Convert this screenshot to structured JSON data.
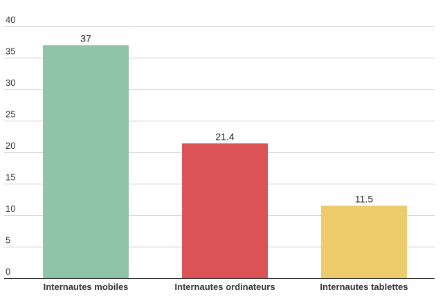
{
  "chart_data": {
    "type": "bar",
    "title": "",
    "xlabel": "",
    "ylabel": "",
    "categories": [
      "Internautes mobiles",
      "Internautes ordinateurs",
      "Internautes tablettes"
    ],
    "values": [
      37,
      21.4,
      11.5
    ],
    "value_labels": [
      "37",
      "21.4",
      "11.5"
    ],
    "colors": [
      "#8fc4a9",
      "#dc5357",
      "#eecb6a"
    ],
    "ylim": [
      0,
      40
    ],
    "yticks": [
      0,
      5,
      10,
      15,
      20,
      25,
      30,
      35,
      40
    ],
    "ytick_labels": [
      "0",
      "5",
      "10",
      "15",
      "20",
      "25",
      "30",
      "35",
      "40"
    ],
    "grid": true,
    "legend": "none"
  }
}
